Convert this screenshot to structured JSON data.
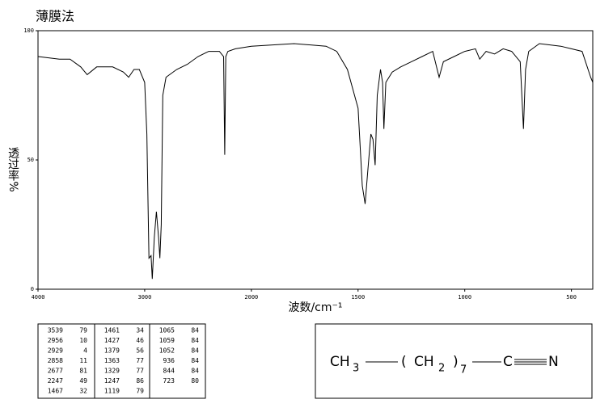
{
  "chart_data": {
    "type": "line",
    "title": "薄膜法",
    "ylabel": "透过率%",
    "xlabel": "波数/cm⁻¹",
    "xlim": [
      4000,
      400
    ],
    "xscale_break": 2000,
    "ylim": [
      0,
      100
    ],
    "xticks": [
      4000,
      3000,
      2000,
      1500,
      1000,
      500
    ],
    "yticks": [
      0,
      50,
      100
    ],
    "color": "#000000",
    "x": [
      4000,
      3800,
      3700,
      3600,
      3539,
      3450,
      3300,
      3200,
      3150,
      3100,
      3050,
      3000,
      2980,
      2960,
      2940,
      2929,
      2910,
      2890,
      2870,
      2858,
      2845,
      2830,
      2800,
      2700,
      2600,
      2500,
      2400,
      2300,
      2260,
      2250,
      2240,
      2220,
      2150,
      2000,
      1800,
      1650,
      1600,
      1550,
      1500,
      1480,
      1467,
      1455,
      1440,
      1430,
      1420,
      1410,
      1395,
      1385,
      1379,
      1370,
      1340,
      1300,
      1250,
      1200,
      1150,
      1120,
      1100,
      1050,
      1000,
      950,
      930,
      900,
      860,
      820,
      780,
      740,
      725,
      715,
      700,
      650,
      550,
      500,
      450,
      410,
      400
    ],
    "values": [
      90,
      89,
      89,
      86,
      83,
      86,
      86,
      84,
      82,
      85,
      85,
      80,
      60,
      12,
      13,
      4,
      20,
      30,
      20,
      12,
      25,
      75,
      82,
      85,
      87,
      90,
      92,
      92,
      90,
      52,
      90,
      92,
      93,
      94,
      95,
      94,
      92,
      85,
      70,
      40,
      33,
      45,
      60,
      58,
      48,
      75,
      85,
      80,
      62,
      80,
      84,
      86,
      88,
      90,
      92,
      82,
      88,
      90,
      92,
      93,
      89,
      92,
      91,
      93,
      92,
      88,
      62,
      85,
      92,
      95,
      94,
      93,
      92,
      82,
      80
    ],
    "peaks": [
      [
        3539,
        79
      ],
      [
        2956,
        10
      ],
      [
        2929,
        4
      ],
      [
        2858,
        11
      ],
      [
        2677,
        81
      ],
      [
        2247,
        49
      ],
      [
        1467,
        32
      ],
      [
        1461,
        34
      ],
      [
        1427,
        46
      ],
      [
        1379,
        56
      ],
      [
        1363,
        77
      ],
      [
        1329,
        77
      ],
      [
        1247,
        86
      ],
      [
        1119,
        79
      ],
      [
        1065,
        84
      ],
      [
        1059,
        84
      ],
      [
        1052,
        84
      ],
      [
        936,
        84
      ],
      [
        844,
        84
      ],
      [
        723,
        80
      ]
    ],
    "structure": [
      "CH",
      "3",
      "(",
      "CH",
      "2",
      ")",
      "7",
      "C",
      "N"
    ]
  }
}
